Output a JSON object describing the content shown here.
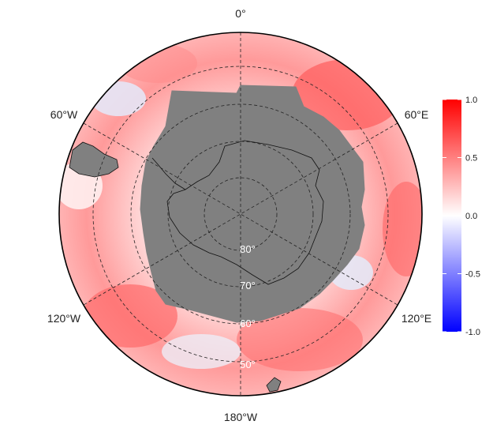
{
  "map": {
    "longitude_labels": [
      {
        "text": "0°",
        "lon": 0
      },
      {
        "text": "60°E",
        "lon": 60
      },
      {
        "text": "120°E",
        "lon": 120
      },
      {
        "text": "180°W",
        "lon": 180
      },
      {
        "text": "120°W",
        "lon": -120
      },
      {
        "text": "60°W",
        "lon": -60
      }
    ],
    "latitude_labels": [
      {
        "text": "80°",
        "lat": -80
      },
      {
        "text": "70°",
        "lat": -70
      },
      {
        "text": "60°",
        "lat": -60
      },
      {
        "text": "50°",
        "lat": -50
      }
    ],
    "projection": "south-polar-stereographic",
    "outer_boundary_lat": -40,
    "land_color": "#808080",
    "ocean_field": "correlation"
  },
  "colorbar": {
    "ticks": [
      "1.0",
      "0.5",
      "0.0",
      "-0.5",
      "-1.0"
    ],
    "min": -1.0,
    "max": 1.0,
    "color_high": "#ff0000",
    "color_mid": "#ffffff",
    "color_low": "#0000ff"
  }
}
